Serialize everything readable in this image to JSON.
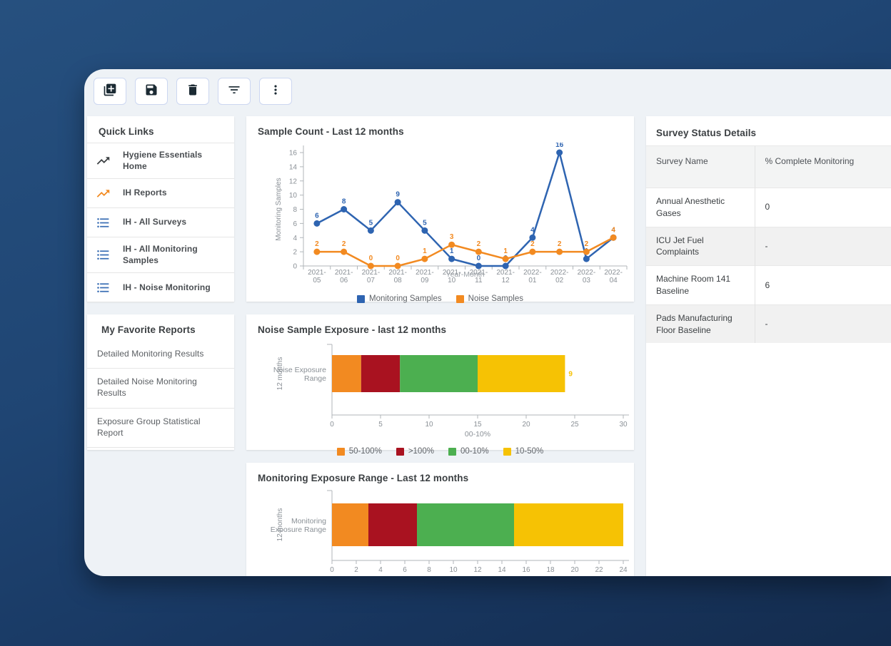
{
  "colors": {
    "background_top": "#26507f",
    "background_bottom": "#142c4e",
    "card_background": "#eef2f6",
    "series_blue": "#2e64b1",
    "series_orange": "#f28a21",
    "series_red": "#a91220",
    "series_green": "#4caf50",
    "series_yellow": "#f6c204",
    "icon_dark": "#1b2a33",
    "list_icon_blue": "#3b6fb5",
    "axis_text": "#8a9096"
  },
  "toolbar": {
    "buttons": [
      {
        "name": "add-new",
        "icon": "library-add-icon"
      },
      {
        "name": "save",
        "icon": "save-icon"
      },
      {
        "name": "delete",
        "icon": "trash-icon"
      },
      {
        "name": "filter",
        "icon": "filter-list-icon"
      },
      {
        "name": "more",
        "icon": "more-vert-icon"
      }
    ]
  },
  "quick_links": {
    "title": "Quick Links",
    "items": [
      {
        "label": "Hygiene Essentials Home",
        "icon": "trending-up-icon",
        "icon_color": "#3c4043"
      },
      {
        "label": "IH Reports",
        "icon": "trending-up-icon",
        "icon_color": "#f28a21"
      },
      {
        "label": "IH - All Surveys",
        "icon": "list-icon",
        "icon_color": "#3b6fb5"
      },
      {
        "label": "IH - All Monitoring Samples",
        "icon": "list-icon",
        "icon_color": "#3b6fb5"
      },
      {
        "label": "IH - Noise Monitoring",
        "icon": "list-icon",
        "icon_color": "#3b6fb5"
      }
    ]
  },
  "favorites": {
    "title": "My Favorite Reports",
    "items": [
      "Detailed Monitoring Results",
      "Detailed Noise Monitoring Results",
      "Exposure Group Statistical Report"
    ]
  },
  "chart_data": [
    {
      "type": "line",
      "title": "Sample Count - Last 12 months",
      "xlabel": "Year-Month",
      "ylabel": "Monitoring Samples",
      "ylim": [
        0,
        16
      ],
      "yticks": [
        0,
        2,
        4,
        6,
        8,
        10,
        12,
        14,
        16
      ],
      "grid": false,
      "legend_position": "bottom",
      "categories": [
        "2021-05",
        "2021-06",
        "2021-07",
        "2021-08",
        "2021-09",
        "2021-10",
        "2021-11",
        "2021-12",
        "2022-01",
        "2022-02",
        "2022-03",
        "2022-04"
      ],
      "series": [
        {
          "name": "Monitoring Samples",
          "color": "#2e64b1",
          "values": [
            6,
            8,
            5,
            9,
            5,
            1,
            0,
            0,
            4,
            16,
            1,
            4
          ]
        },
        {
          "name": "Noise Samples",
          "color": "#f28a21",
          "values": [
            2,
            2,
            0,
            0,
            1,
            3,
            2,
            1,
            2,
            2,
            2,
            4
          ]
        }
      ]
    },
    {
      "type": "bar",
      "orientation": "horizontal-stacked",
      "title": "Noise Sample Exposure - last 12 months",
      "category_label_lines": [
        "Noise Exposure",
        "Range"
      ],
      "group_axis_label": "12 months",
      "xlabel": "00-10%",
      "xlim": [
        0,
        30
      ],
      "xticks": [
        0,
        5,
        10,
        15,
        20,
        25,
        30
      ],
      "labels_visible": true,
      "legend_position": "bottom",
      "segments": [
        {
          "name": "50-100%",
          "color": "#f28a21",
          "value": 3
        },
        {
          "name": ">100%",
          "color": "#a91220",
          "value": 4
        },
        {
          "name": "00-10%",
          "color": "#4caf50",
          "value": 8
        },
        {
          "name": "10-50%",
          "color": "#f6c204",
          "value": 9
        }
      ]
    },
    {
      "type": "bar",
      "orientation": "horizontal-stacked",
      "title": "Monitoring Exposure Range - Last 12 months",
      "category_label_lines": [
        "Monitoring",
        "Exposure Range"
      ],
      "group_axis_label": "12 months",
      "xlabel": "",
      "xlim": [
        0,
        24
      ],
      "xticks": [
        0,
        2,
        4,
        6,
        8,
        10,
        12,
        14,
        16,
        18,
        20,
        22,
        24
      ],
      "labels_visible": false,
      "legend_position": "bottom",
      "segments": [
        {
          "name": "50-100%",
          "color": "#f28a21",
          "value": 3
        },
        {
          "name": ">100%",
          "color": "#a91220",
          "value": 4
        },
        {
          "name": "00-10%",
          "color": "#4caf50",
          "value": 8
        },
        {
          "name": "10-50%",
          "color": "#f6c204",
          "value": 9
        }
      ]
    }
  ],
  "survey_table": {
    "title": "Survey Status Details",
    "columns": [
      "Survey Name",
      "% Complete Monitoring"
    ],
    "rows": [
      [
        "Annual Anesthetic Gases",
        "0"
      ],
      [
        "ICU Jet Fuel Complaints",
        "-"
      ],
      [
        "Machine Room 141 Baseline",
        "6"
      ],
      [
        "Pads Manufacturing Floor Baseline",
        "-"
      ]
    ]
  }
}
